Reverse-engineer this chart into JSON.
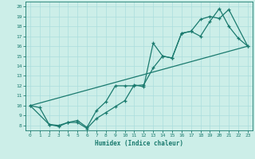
{
  "title": "",
  "xlabel": "Humidex (Indice chaleur)",
  "bg_color": "#cceee8",
  "line_color": "#1a7a6e",
  "grid_color": "#aadddd",
  "xlim": [
    -0.5,
    23.5
  ],
  "ylim": [
    7.5,
    20.5
  ],
  "xticks": [
    0,
    1,
    2,
    3,
    4,
    5,
    6,
    7,
    8,
    9,
    10,
    11,
    12,
    13,
    14,
    15,
    16,
    17,
    18,
    19,
    20,
    21,
    22,
    23
  ],
  "yticks": [
    8,
    9,
    10,
    11,
    12,
    13,
    14,
    15,
    16,
    17,
    18,
    19,
    20
  ],
  "line1_x": [
    0,
    1,
    2,
    3,
    4,
    5,
    6,
    7,
    8,
    9,
    10,
    11,
    12,
    13,
    14,
    15,
    16,
    17,
    18,
    19,
    20,
    21,
    22,
    23
  ],
  "line1_y": [
    10.0,
    9.8,
    8.1,
    7.9,
    8.3,
    8.3,
    7.7,
    8.7,
    9.3,
    9.9,
    10.5,
    12.1,
    11.9,
    16.3,
    15.0,
    14.8,
    17.3,
    17.5,
    17.0,
    18.5,
    19.8,
    18.0,
    16.8,
    16.0
  ],
  "line2_x": [
    0,
    2,
    3,
    4,
    5,
    6,
    7,
    8,
    9,
    10,
    11,
    12,
    13,
    14,
    15,
    16,
    17,
    18,
    19,
    20,
    21,
    23
  ],
  "line2_y": [
    10.0,
    8.1,
    8.0,
    8.3,
    8.5,
    7.8,
    9.5,
    10.4,
    12.0,
    12.0,
    12.0,
    12.1,
    13.8,
    15.0,
    14.8,
    17.3,
    17.5,
    18.7,
    19.0,
    18.8,
    19.7,
    16.0
  ],
  "line3_x": [
    0,
    23
  ],
  "line3_y": [
    10.0,
    16.0
  ]
}
